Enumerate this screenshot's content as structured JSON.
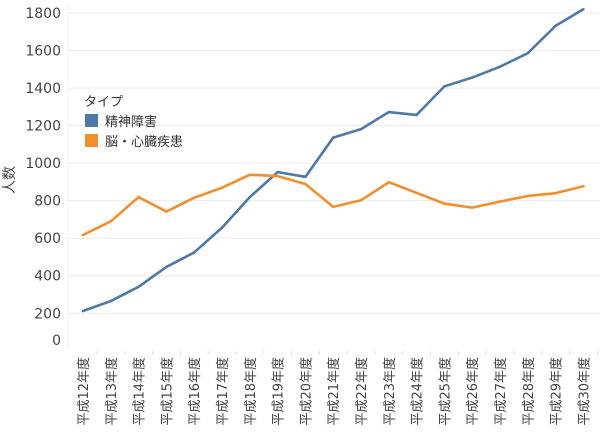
{
  "chart_data": {
    "type": "line",
    "title": "",
    "xlabel": "",
    "ylabel": "人数",
    "ylim": [
      0,
      1800
    ],
    "yticks": [
      0,
      200,
      400,
      600,
      800,
      1000,
      1200,
      1400,
      1600,
      1800
    ],
    "grid": true,
    "categories": [
      "平成12年度",
      "平成13年度",
      "平成14年度",
      "平成15年度",
      "平成16年度",
      "平成17年度",
      "平成18年度",
      "平成19年度",
      "平成20年度",
      "平成21年度",
      "平成22年度",
      "平成23年度",
      "平成24年度",
      "平成25年度",
      "平成26年度",
      "平成27年度",
      "平成28年度",
      "平成29年度",
      "平成30年度"
    ],
    "legend": {
      "title": "タイプ",
      "placement": "top-left"
    },
    "series": [
      {
        "name": "精神障害",
        "color": "#4e79a7",
        "values": [
          212,
          265,
          341,
          447,
          524,
          656,
          819,
          952,
          927,
          1136,
          1181,
          1272,
          1257,
          1409,
          1456,
          1514,
          1586,
          1732,
          1820
        ]
      },
      {
        "name": "脳・心臓疾患",
        "color": "#f28e2b",
        "values": [
          617,
          690,
          819,
          742,
          816,
          869,
          938,
          931,
          889,
          767,
          802,
          898,
          842,
          784,
          763,
          795,
          825,
          840,
          877
        ]
      }
    ]
  }
}
